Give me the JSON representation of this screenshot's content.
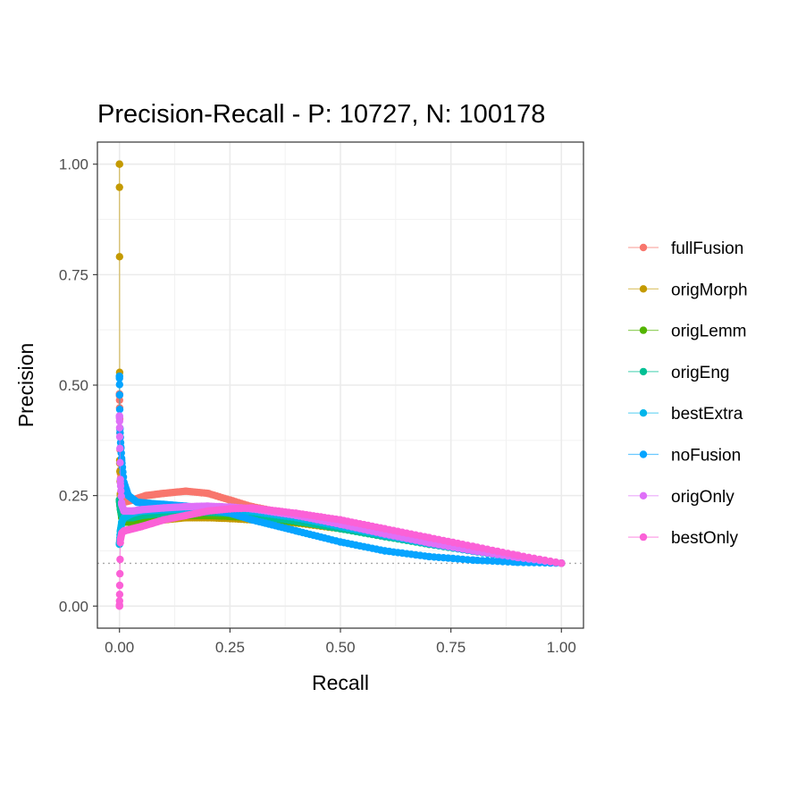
{
  "chart_data": {
    "type": "line",
    "title": "Precision-Recall - P: 10727, N: 100178",
    "xlabel": "Recall",
    "ylabel": "Precision",
    "xlim": [
      -0.05,
      1.05
    ],
    "ylim": [
      -0.05,
      1.05
    ],
    "x_ticks": [
      "0.00",
      "0.25",
      "0.50",
      "0.75",
      "1.00"
    ],
    "y_ticks": [
      "0.00",
      "0.25",
      "0.50",
      "0.75",
      "1.00"
    ],
    "x_tick_values": [
      0,
      0.25,
      0.5,
      0.75,
      1.0
    ],
    "y_tick_values": [
      0,
      0.25,
      0.5,
      0.75,
      1.0
    ],
    "grid": true,
    "legend_position": "right",
    "baseline": 0.0967,
    "series": [
      {
        "name": "fullFusion",
        "color": "#F8766D",
        "x": [
          0,
          0.002,
          0.005,
          0.01,
          0.03,
          0.06,
          0.1,
          0.15,
          0.2,
          0.25,
          0.3,
          0.4,
          0.5,
          0.6,
          0.7,
          0.8,
          0.9,
          1.0
        ],
        "y": [
          0.48,
          0.3,
          0.24,
          0.235,
          0.24,
          0.25,
          0.255,
          0.26,
          0.255,
          0.24,
          0.225,
          0.205,
          0.185,
          0.165,
          0.145,
          0.128,
          0.11,
          0.097
        ]
      },
      {
        "name": "origMorph",
        "color": "#C49A00",
        "x": [
          0,
          0.0005,
          0.002,
          0.005,
          0.01,
          0.03,
          0.05,
          0.1,
          0.15,
          0.2,
          0.25,
          0.3,
          0.4,
          0.5,
          0.6,
          0.7,
          0.8,
          0.9,
          1.0
        ],
        "y": [
          1.0,
          0.33,
          0.25,
          0.22,
          0.2,
          0.19,
          0.19,
          0.195,
          0.2,
          0.2,
          0.198,
          0.195,
          0.188,
          0.175,
          0.158,
          0.14,
          0.125,
          0.11,
          0.097
        ]
      },
      {
        "name": "origLemm",
        "color": "#53B400",
        "x": [
          0,
          0.002,
          0.005,
          0.01,
          0.03,
          0.05,
          0.1,
          0.15,
          0.2,
          0.25,
          0.3,
          0.4,
          0.5,
          0.6,
          0.7,
          0.8,
          0.9,
          1.0
        ],
        "y": [
          0.24,
          0.22,
          0.2,
          0.19,
          0.19,
          0.195,
          0.2,
          0.205,
          0.205,
          0.203,
          0.2,
          0.19,
          0.178,
          0.16,
          0.142,
          0.125,
          0.11,
          0.097
        ]
      },
      {
        "name": "origEng",
        "color": "#00C094",
        "x": [
          0,
          0.002,
          0.005,
          0.01,
          0.03,
          0.05,
          0.1,
          0.15,
          0.2,
          0.25,
          0.3,
          0.4,
          0.5,
          0.6,
          0.7,
          0.8,
          0.9,
          1.0
        ],
        "y": [
          0.24,
          0.22,
          0.205,
          0.2,
          0.2,
          0.205,
          0.21,
          0.212,
          0.212,
          0.21,
          0.205,
          0.192,
          0.175,
          0.157,
          0.14,
          0.124,
          0.109,
          0.097
        ]
      },
      {
        "name": "bestExtra",
        "color": "#00B6EB",
        "x": [
          0,
          0.002,
          0.005,
          0.01,
          0.03,
          0.05,
          0.1,
          0.15,
          0.2,
          0.25,
          0.3,
          0.4,
          0.5,
          0.6,
          0.7,
          0.8,
          0.9,
          1.0
        ],
        "y": [
          0.14,
          0.17,
          0.19,
          0.2,
          0.21,
          0.215,
          0.218,
          0.22,
          0.22,
          0.218,
          0.214,
          0.2,
          0.18,
          0.16,
          0.141,
          0.124,
          0.109,
          0.097
        ]
      },
      {
        "name": "noFusion",
        "color": "#06A4FF",
        "x": [
          0,
          0.001,
          0.003,
          0.005,
          0.01,
          0.02,
          0.04,
          0.07,
          0.1,
          0.15,
          0.2,
          0.25,
          0.3,
          0.4,
          0.5,
          0.6,
          0.7,
          0.8,
          0.9,
          1.0
        ],
        "y": [
          0.52,
          0.4,
          0.36,
          0.33,
          0.28,
          0.25,
          0.235,
          0.232,
          0.23,
          0.226,
          0.22,
          0.21,
          0.195,
          0.17,
          0.145,
          0.125,
          0.112,
          0.104,
          0.099,
          0.097
        ]
      },
      {
        "name": "origOnly",
        "color": "#DF70F8",
        "x": [
          0,
          0.002,
          0.005,
          0.01,
          0.03,
          0.05,
          0.1,
          0.15,
          0.2,
          0.25,
          0.3,
          0.4,
          0.5,
          0.6,
          0.7,
          0.8,
          0.9,
          1.0
        ],
        "y": [
          0.43,
          0.28,
          0.23,
          0.215,
          0.215,
          0.218,
          0.222,
          0.225,
          0.226,
          0.224,
          0.22,
          0.205,
          0.185,
          0.163,
          0.143,
          0.125,
          0.11,
          0.097
        ]
      },
      {
        "name": "bestOnly",
        "color": "#FB61D7",
        "x": [
          0,
          0.002,
          0.005,
          0.01,
          0.03,
          0.05,
          0.1,
          0.15,
          0.2,
          0.25,
          0.3,
          0.4,
          0.5,
          0.6,
          0.7,
          0.8,
          0.9,
          1.0
        ],
        "y": [
          0.0,
          0.15,
          0.165,
          0.17,
          0.175,
          0.18,
          0.195,
          0.205,
          0.215,
          0.22,
          0.222,
          0.21,
          0.195,
          0.175,
          0.155,
          0.135,
          0.115,
          0.097
        ]
      }
    ]
  }
}
